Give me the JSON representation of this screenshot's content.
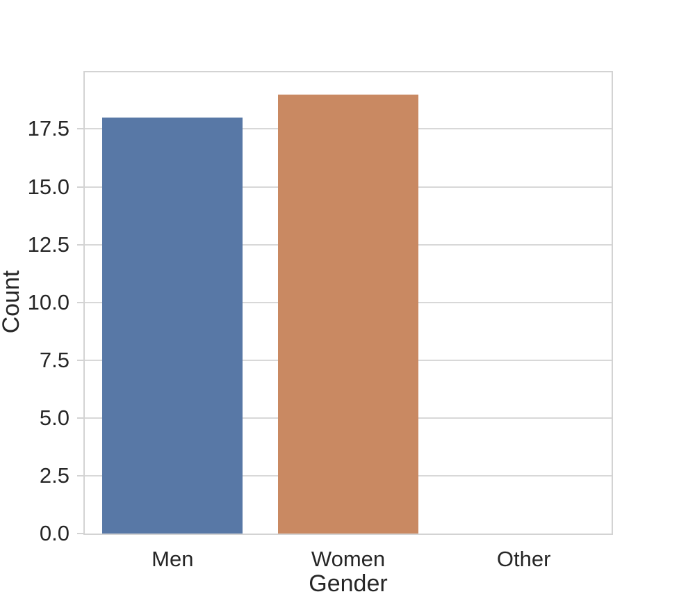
{
  "figure": {
    "background": "#ffffff",
    "text_color": "#262626",
    "grid_color": "#d8d8d8",
    "spine_color": "#d3d3d3"
  },
  "chart_data": {
    "type": "bar",
    "title": "",
    "xlabel": "Gender",
    "ylabel": "Count",
    "categories": [
      "Men",
      "Women",
      "Other"
    ],
    "values": [
      18,
      19,
      0
    ],
    "bar_colors": [
      "#5878a6",
      "#c98962",
      null
    ],
    "ylim": [
      0,
      19.95
    ],
    "yticks": [
      0.0,
      2.5,
      5.0,
      7.5,
      10.0,
      12.5,
      15.0,
      17.5
    ],
    "ytick_labels": [
      "0.0",
      "2.5",
      "5.0",
      "7.5",
      "10.0",
      "12.5",
      "15.0",
      "17.5"
    ],
    "bar_width_fraction": 0.8,
    "grid": "horizontal-gridlines",
    "legend": "none"
  }
}
